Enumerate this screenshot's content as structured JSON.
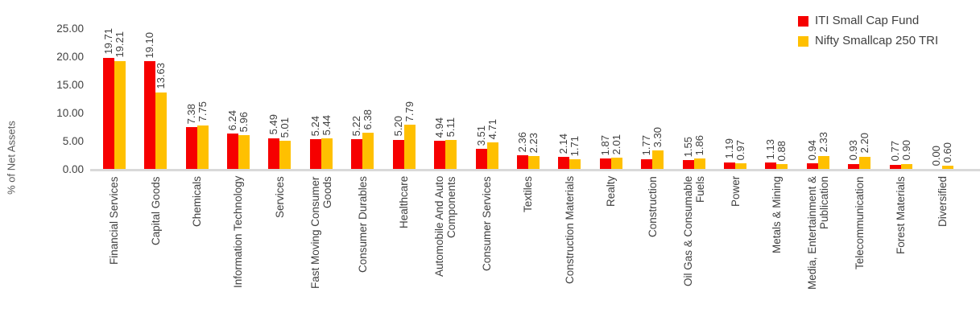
{
  "chart_data": {
    "type": "bar",
    "title": "",
    "ylabel": "% of Net Assets",
    "ylim": [
      0,
      25
    ],
    "grid": false,
    "legend_position": "top-right",
    "yticks": [
      {
        "value": 0,
        "label": "0.00"
      },
      {
        "value": 5,
        "label": "5.00"
      },
      {
        "value": 10,
        "label": "10.00"
      },
      {
        "value": 15,
        "label": "15.00"
      },
      {
        "value": 20,
        "label": "20.00"
      },
      {
        "value": 25,
        "label": "25.00"
      }
    ],
    "categories": [
      "Financial Services",
      "Capital Goods",
      "Chemicals",
      "Information Technology",
      "Services",
      "Fast Moving Consumer\nGoods",
      "Consumer Durables",
      "Healthcare",
      "Automobile And Auto\nComponents",
      "Consumer Services",
      "Textiles",
      "Construction Materials",
      "Realty",
      "Construction",
      "Oil Gas & Consumable\nFuels",
      "Power",
      "Metals & Mining",
      "Media, Entertainment &\nPublication",
      "Telecommunication",
      "Forest Materials",
      "Diversified"
    ],
    "series": [
      {
        "name": "ITI Small Cap Fund",
        "color": "#f60000",
        "values": [
          19.71,
          19.1,
          7.38,
          6.24,
          5.49,
          5.24,
          5.22,
          5.2,
          4.94,
          3.51,
          2.36,
          2.14,
          1.87,
          1.77,
          1.55,
          1.19,
          1.13,
          0.94,
          0.93,
          0.77,
          0.0
        ]
      },
      {
        "name": "Nifty Smallcap 250 TRI",
        "color": "#ffc000",
        "values": [
          19.21,
          13.63,
          7.75,
          5.96,
          5.01,
          5.44,
          6.38,
          7.79,
          5.11,
          4.71,
          2.23,
          1.71,
          2.01,
          3.3,
          1.86,
          0.97,
          0.88,
          2.33,
          2.2,
          0.9,
          0.6
        ]
      }
    ],
    "colors": {
      "axis_line": "#d9d9d9",
      "label_text": "#404040",
      "axis_title_text": "#595959"
    }
  }
}
